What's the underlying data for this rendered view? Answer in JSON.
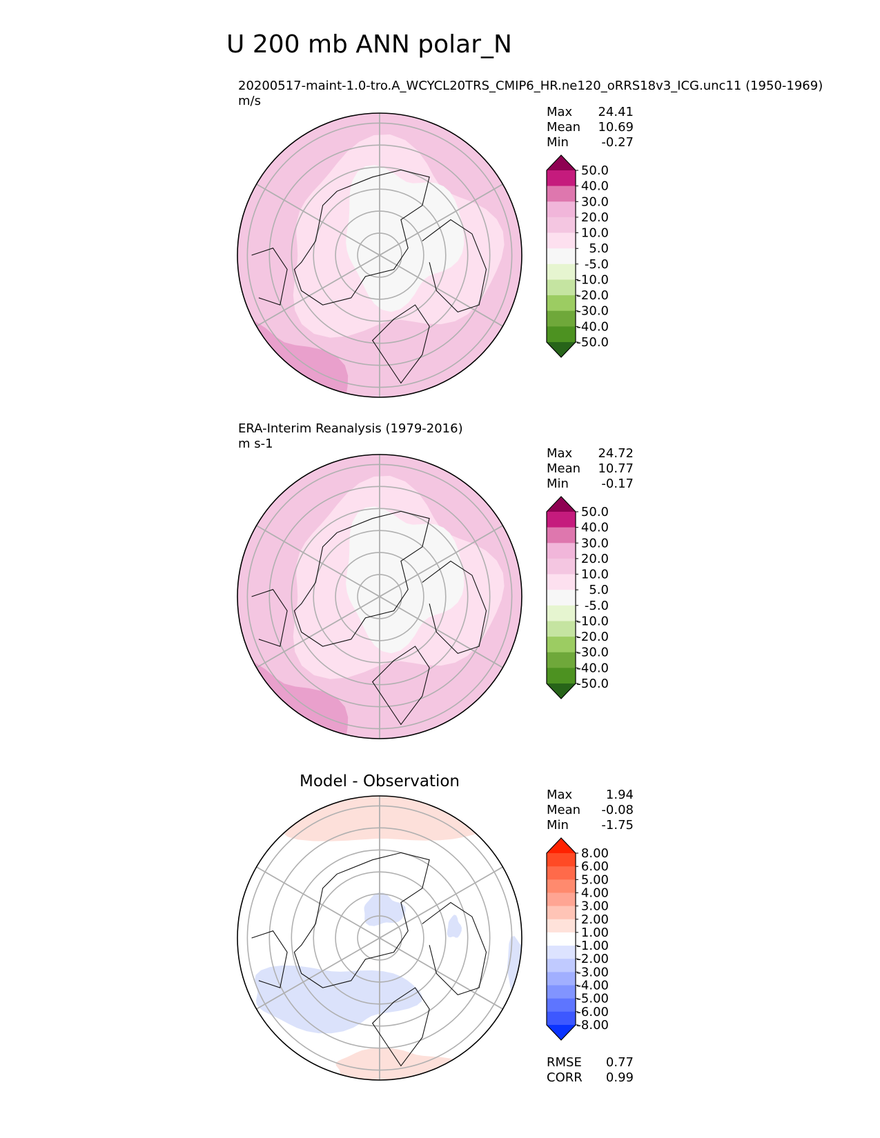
{
  "title": "U 200 mb ANN polar_N",
  "chart_data": [
    {
      "type": "contour-map",
      "projection": "north-polar-stereographic",
      "subtitle": "20200517-maint-1.0-tro.A_WCYCL20TRS_CMIP6_HR.ne120_oRRS18v3_ICG.unc11 (1950-1969)",
      "units": "m/s",
      "stats": [
        {
          "label": "Max",
          "value": "24.41"
        },
        {
          "label": "Mean",
          "value": "10.69"
        },
        {
          "label": "Min",
          "value": "-0.27"
        }
      ],
      "colorbar": {
        "levels": [
          "50.0",
          "40.0",
          "30.0",
          "20.0",
          "10.0",
          "5.0",
          "-5.0",
          "-10.0",
          "-20.0",
          "-30.0",
          "-40.0",
          "-50.0"
        ],
        "colors": [
          "#8e0152",
          "#c51b7d",
          "#de77ae",
          "#f1b6da",
          "#f4c6e1",
          "#fde0ef",
          "#f7f7f7",
          "#e6f5d0",
          "#c5e4a1",
          "#9ccc62",
          "#6fa83a",
          "#4d9221",
          "#276419"
        ]
      },
      "map_fill": {
        "outer": "#f4c6e1",
        "inner": "#fde0ef",
        "core": "#f7f7f7",
        "edge": "#e9a0cc"
      }
    },
    {
      "type": "contour-map",
      "projection": "north-polar-stereographic",
      "subtitle": "ERA-Interim Reanalysis (1979-2016)",
      "units": "m s-1",
      "stats": [
        {
          "label": "Max",
          "value": "24.72"
        },
        {
          "label": "Mean",
          "value": "10.77"
        },
        {
          "label": "Min",
          "value": "-0.17"
        }
      ],
      "colorbar": {
        "levels": [
          "50.0",
          "40.0",
          "30.0",
          "20.0",
          "10.0",
          "5.0",
          "-5.0",
          "-10.0",
          "-20.0",
          "-30.0",
          "-40.0",
          "-50.0"
        ],
        "colors": [
          "#8e0152",
          "#c51b7d",
          "#de77ae",
          "#f1b6da",
          "#f4c6e1",
          "#fde0ef",
          "#f7f7f7",
          "#e6f5d0",
          "#c5e4a1",
          "#9ccc62",
          "#6fa83a",
          "#4d9221",
          "#276419"
        ]
      },
      "map_fill": {
        "outer": "#f4c6e1",
        "inner": "#fde0ef",
        "core": "#f7f7f7",
        "edge": "#e9a0cc"
      }
    },
    {
      "type": "contour-map",
      "projection": "north-polar-stereographic",
      "subtitle": "Model - Observation",
      "units": "",
      "stats": [
        {
          "label": "Max",
          "value": "1.94"
        },
        {
          "label": "Mean",
          "value": "-0.08"
        },
        {
          "label": "Min",
          "value": "-1.75"
        }
      ],
      "extra_stats": [
        {
          "label": "RMSE",
          "value": "0.77"
        },
        {
          "label": "CORR",
          "value": "0.99"
        }
      ],
      "colorbar": {
        "levels": [
          "8.00",
          "6.00",
          "5.00",
          "4.00",
          "3.00",
          "2.00",
          "1.00",
          "-1.00",
          "-2.00",
          "-3.00",
          "-4.00",
          "-5.00",
          "-6.00",
          "-8.00"
        ],
        "colors": [
          "#ff2200",
          "#ff4a25",
          "#ff6a4a",
          "#ff8a6e",
          "#ffa593",
          "#ffc4b6",
          "#ffe2da",
          "#ffffff",
          "#dde3ff",
          "#c0caff",
          "#a1afff",
          "#8194ff",
          "#5e75ff",
          "#3d58ff",
          "#0a33ff"
        ]
      },
      "map_fill": {
        "outer": "#ffffff",
        "pos": "#fde0da",
        "neg": "#dbe2fb"
      }
    }
  ]
}
